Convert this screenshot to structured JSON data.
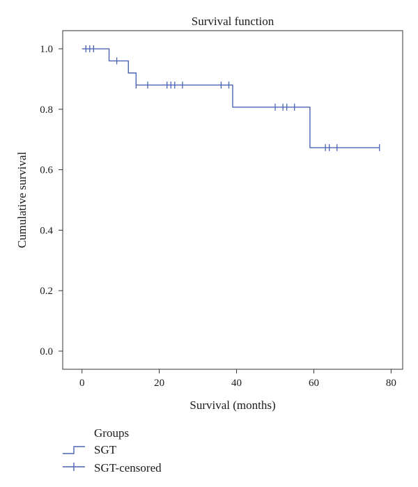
{
  "chart_data": {
    "type": "line",
    "title": "Survival function",
    "xlabel": "Survival (months)",
    "ylabel": "Cumulative survival",
    "xlim": [
      -5,
      83
    ],
    "ylim": [
      -0.06,
      1.06
    ],
    "xticks": [
      "0",
      "20",
      "40",
      "60",
      "80"
    ],
    "yticks": [
      "0.0",
      "0.2",
      "0.4",
      "0.6",
      "0.8",
      "1.0"
    ],
    "grid": false,
    "legend_position": "bottom-left",
    "legend_title": "Groups",
    "series_color": "#4a64b4",
    "series": [
      {
        "name": "SGT",
        "x": [
          0,
          7,
          7,
          12,
          12,
          14,
          14,
          39,
          39,
          59,
          59,
          77
        ],
        "y": [
          1.0,
          1.0,
          0.96,
          0.96,
          0.92,
          0.92,
          0.88,
          0.88,
          0.807,
          0.807,
          0.673,
          0.673
        ]
      },
      {
        "name": "SGT-censored",
        "x": [
          1,
          2,
          3,
          9,
          14,
          17,
          22,
          23,
          24,
          26,
          36,
          38,
          50,
          52,
          53,
          55,
          63,
          64,
          66,
          77
        ],
        "y": [
          1.0,
          1.0,
          1.0,
          0.96,
          0.88,
          0.88,
          0.88,
          0.88,
          0.88,
          0.88,
          0.88,
          0.88,
          0.807,
          0.807,
          0.807,
          0.807,
          0.673,
          0.673,
          0.673,
          0.673
        ]
      }
    ]
  }
}
